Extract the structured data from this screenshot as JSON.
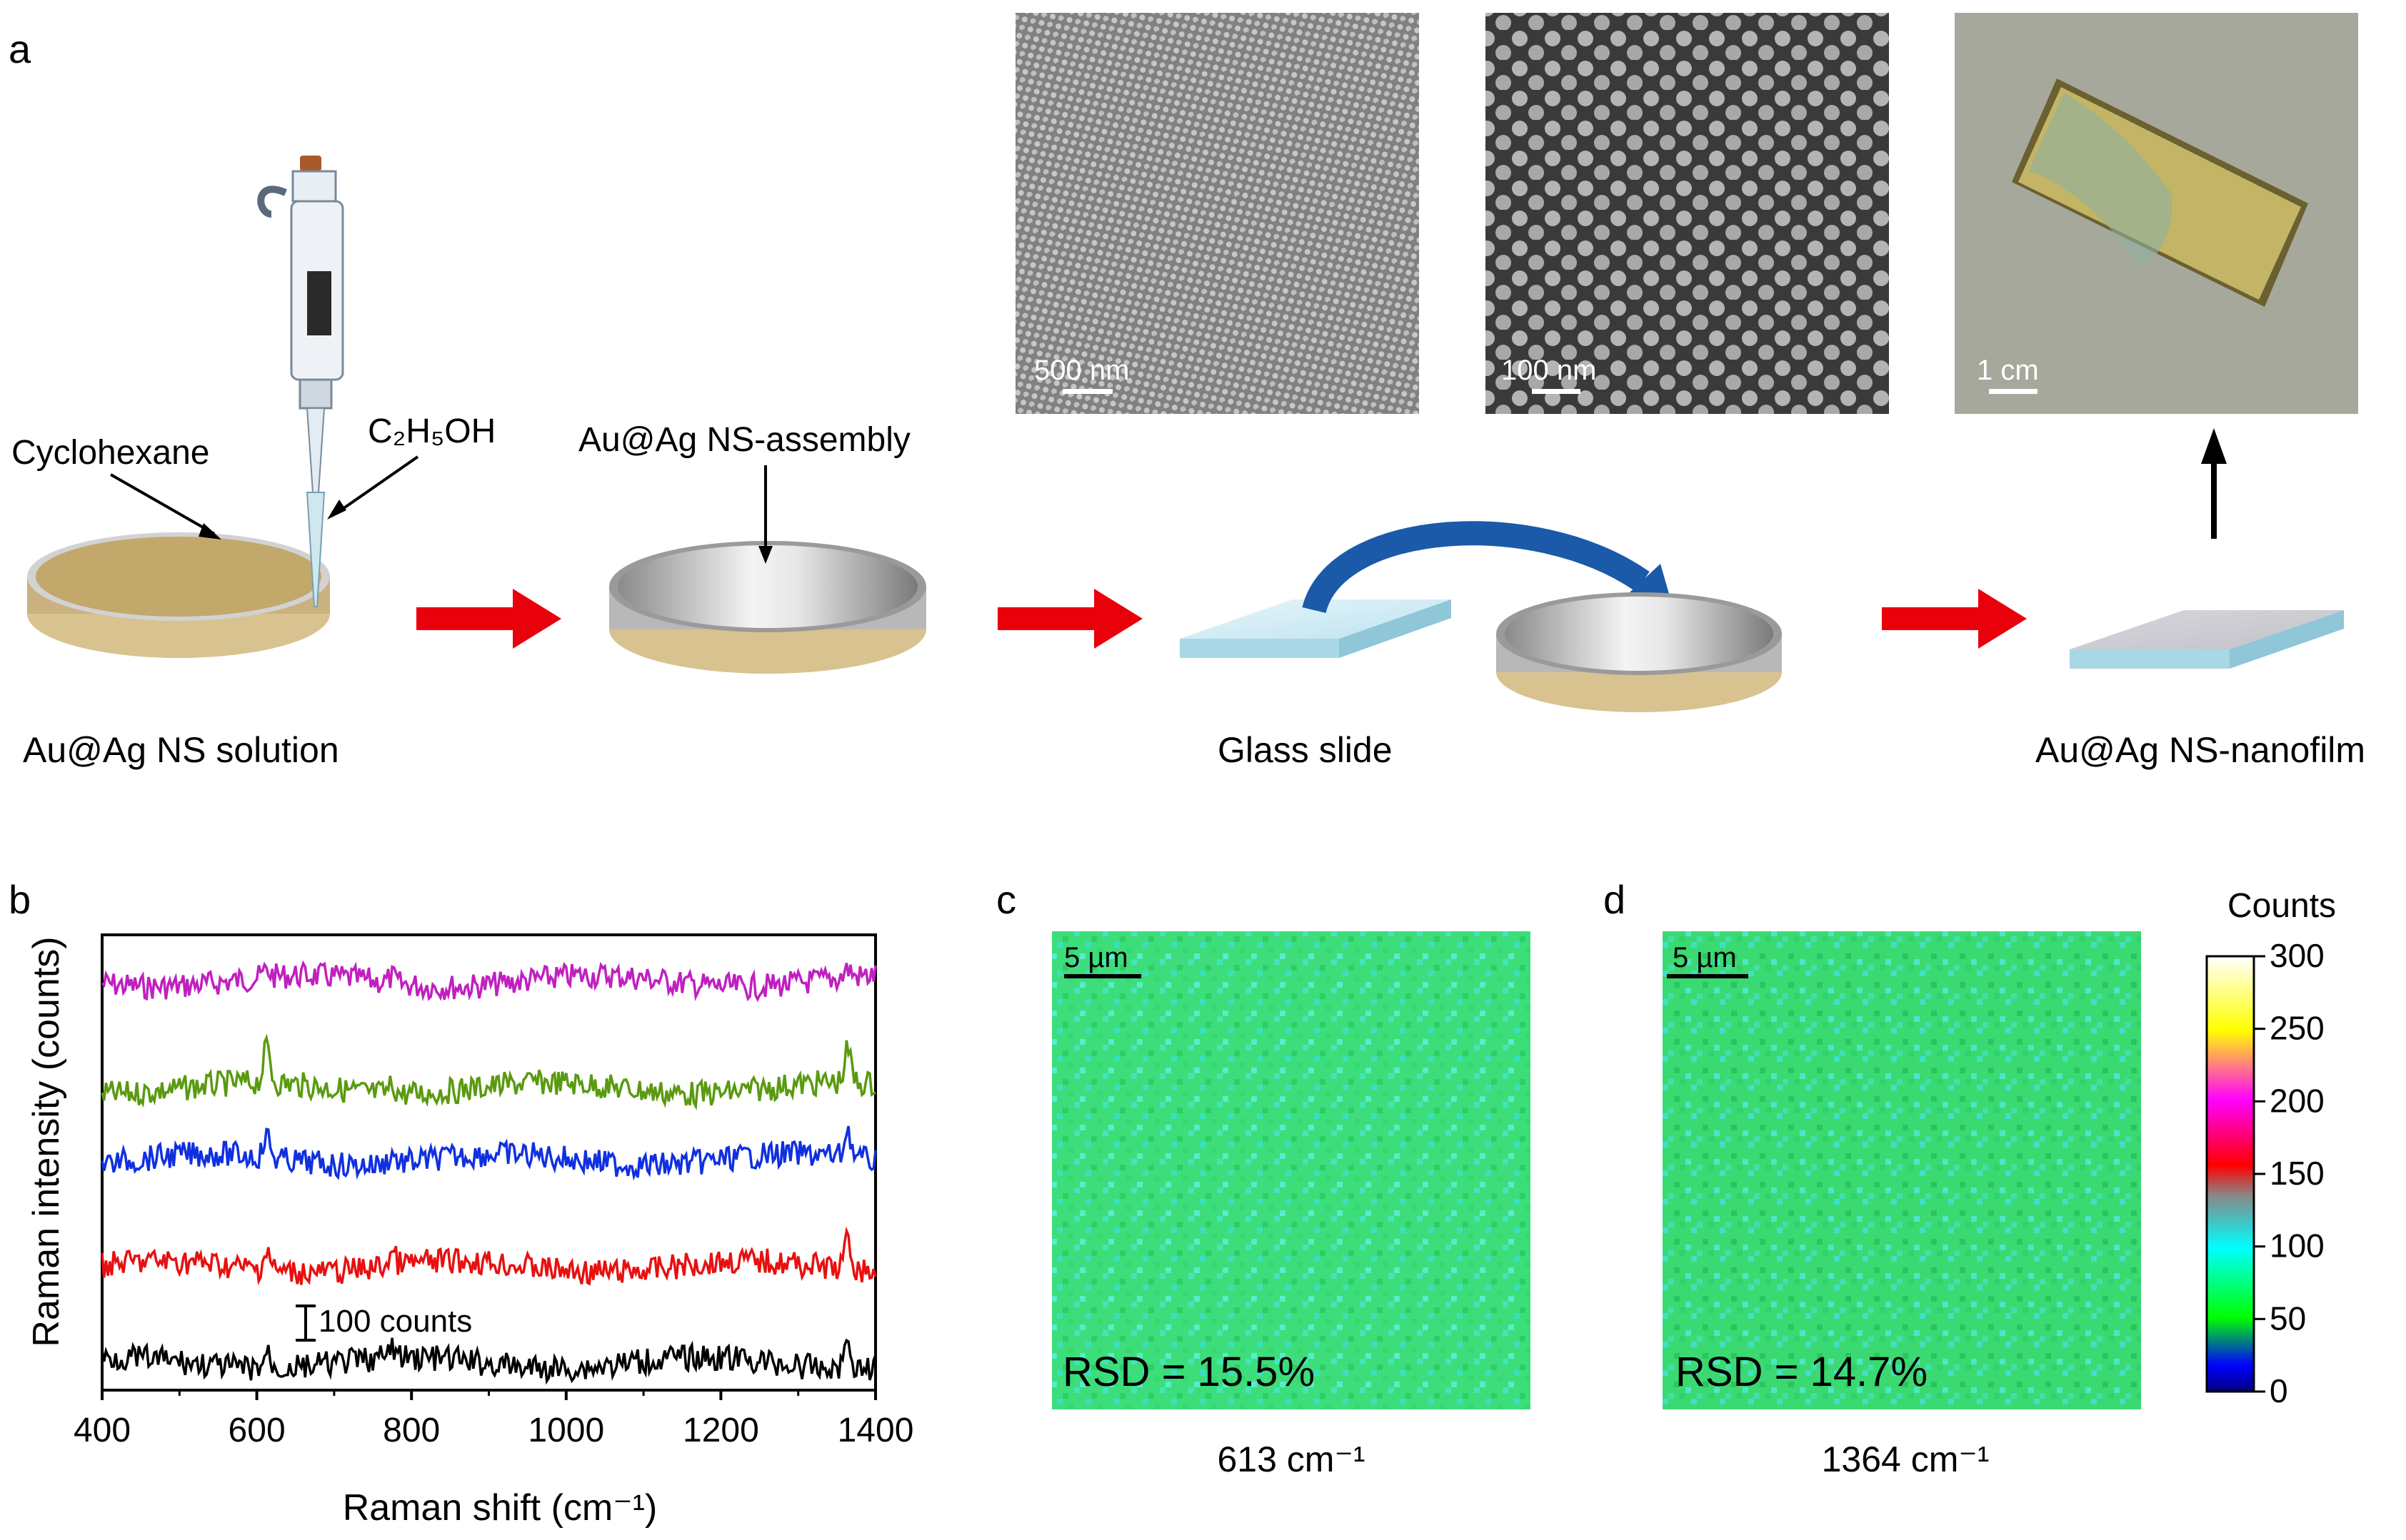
{
  "panel_a": {
    "letter": "a",
    "labels": {
      "cyclohexane": "Cyclohexane",
      "ethanol": "C₂H₅OH",
      "assembly": "Au@Ag NS-assembly",
      "solution": "Au@Ag NS solution",
      "glass_slide": "Glass slide",
      "nanofilm": "Au@Ag NS-nanofilm"
    },
    "scale_bars": {
      "sem_low": "500 nm",
      "sem_high": "100 nm",
      "photo": "1 cm"
    }
  },
  "panel_b": {
    "letter": "b",
    "scale_label": "100 counts"
  },
  "panel_c": {
    "letter": "c",
    "scale_label": "5 µm",
    "rsd": "RSD = 15.5%",
    "caption": "613 cm⁻¹"
  },
  "panel_d": {
    "letter": "d",
    "scale_label": "5 µm",
    "rsd": "RSD = 14.7%",
    "caption": "1364 cm⁻¹"
  },
  "colorbar": {
    "title": "Counts",
    "ticks": [
      "300",
      "250",
      "200",
      "150",
      "100",
      "50",
      "0"
    ]
  },
  "chart_data": {
    "type": "line",
    "xlabel": "Raman shift (cm⁻¹)",
    "ylabel": "Raman intensity (counts)",
    "xlim": [
      400,
      1400
    ],
    "xticks": [
      "400",
      "600",
      "800",
      "1000",
      "1200",
      "1400"
    ],
    "grid": false,
    "series_colors": [
      "#c020c0",
      "#5a9a10",
      "#1030e0",
      "#e81010",
      "#000000"
    ],
    "peak_positions": [
      613,
      775,
      1364
    ]
  }
}
